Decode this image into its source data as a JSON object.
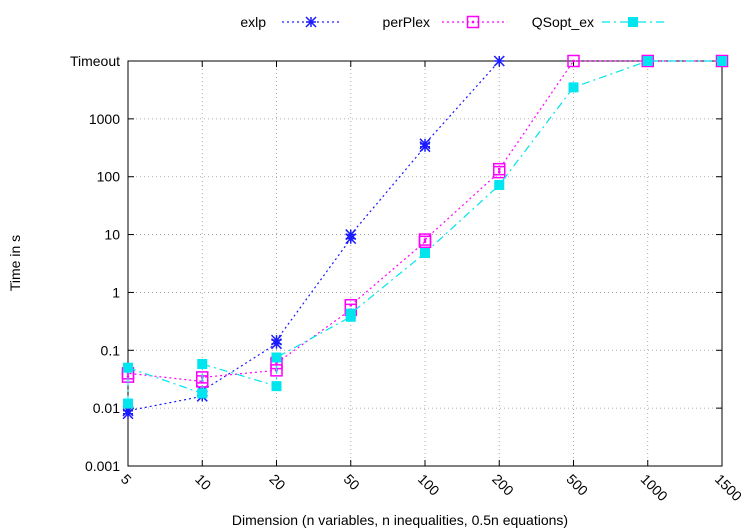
{
  "chart_data": {
    "type": "line",
    "title": "",
    "xlabel": "Dimension (n variables, n inequalities, 0.5n equations)",
    "ylabel": "Time in s",
    "x_scale": "categorical",
    "y_scale": "log",
    "categories": [
      "5",
      "10",
      "20",
      "50",
      "100",
      "200",
      "500",
      "1000",
      "1500"
    ],
    "y_ticks": [
      {
        "value": 0.001,
        "label": "0.001"
      },
      {
        "value": 0.01,
        "label": "0.01"
      },
      {
        "value": 0.1,
        "label": "0.1"
      },
      {
        "value": 1,
        "label": "1"
      },
      {
        "value": 10,
        "label": "10"
      },
      {
        "value": 100,
        "label": "100"
      },
      {
        "value": 1000,
        "label": "1000"
      },
      {
        "value": 10000,
        "label": "Timeout"
      }
    ],
    "ylim": [
      0.001,
      10000
    ],
    "grid": true,
    "legend_position": "top",
    "series": [
      {
        "name": "exlp",
        "color": "#1a1aff",
        "marker": "asterisk",
        "line": "dotted",
        "points": [
          {
            "x": "5",
            "y": 0.008
          },
          {
            "x": "5",
            "y": 0.009
          },
          {
            "x": "10",
            "y": 0.016
          },
          {
            "x": "10",
            "y": 0.02
          },
          {
            "x": "20",
            "y": 0.13
          },
          {
            "x": "20",
            "y": 0.15
          },
          {
            "x": "50",
            "y": 8.5
          },
          {
            "x": "50",
            "y": 10
          },
          {
            "x": "100",
            "y": 330
          },
          {
            "x": "100",
            "y": 370
          },
          {
            "x": "200",
            "y": 10000
          }
        ]
      },
      {
        "name": "perPlex",
        "color": "#ff00ff",
        "marker": "square-dot",
        "line": "dotted",
        "points": [
          {
            "x": "5",
            "y": 0.035
          },
          {
            "x": "5",
            "y": 0.04
          },
          {
            "x": "10",
            "y": 0.029
          },
          {
            "x": "10",
            "y": 0.034
          },
          {
            "x": "20",
            "y": 0.045
          },
          {
            "x": "20",
            "y": 0.06
          },
          {
            "x": "50",
            "y": 0.5
          },
          {
            "x": "50",
            "y": 0.6
          },
          {
            "x": "100",
            "y": 7.5
          },
          {
            "x": "100",
            "y": 8.2
          },
          {
            "x": "200",
            "y": 120
          },
          {
            "x": "200",
            "y": 135
          },
          {
            "x": "500",
            "y": 10000
          },
          {
            "x": "1000",
            "y": 10000
          },
          {
            "x": "1500",
            "y": 10000
          }
        ]
      },
      {
        "name": "QSopt_ex",
        "color": "#00e5ee",
        "marker": "filled-square",
        "line": "dash-dot",
        "points": [
          {
            "x": "5",
            "y": 0.012
          },
          {
            "x": "5",
            "y": 0.05
          },
          {
            "x": "10",
            "y": 0.018
          },
          {
            "x": "10",
            "y": 0.058
          },
          {
            "x": "20",
            "y": 0.024
          },
          {
            "x": "20",
            "y": 0.075
          },
          {
            "x": "50",
            "y": 0.38
          },
          {
            "x": "50",
            "y": 0.43
          },
          {
            "x": "100",
            "y": 4.8
          },
          {
            "x": "200",
            "y": 72
          },
          {
            "x": "500",
            "y": 3500
          },
          {
            "x": "1000",
            "y": 10000
          },
          {
            "x": "1500",
            "y": 10000
          }
        ]
      }
    ]
  }
}
